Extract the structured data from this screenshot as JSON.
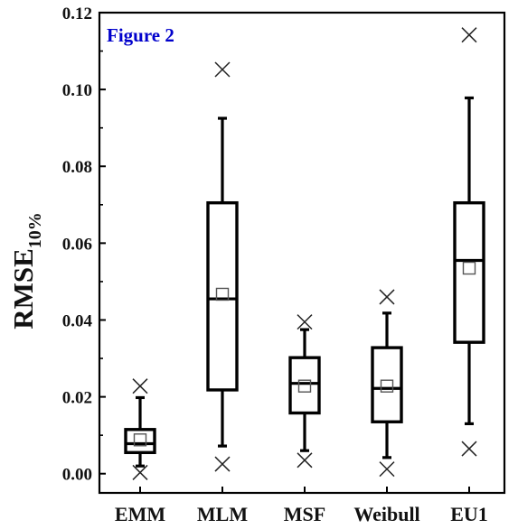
{
  "chart_data": {
    "type": "box",
    "annotation": "Figure 2",
    "annotation_color": "#0000cc",
    "ylabel": "RMSE",
    "ylabel_subscript": "10%",
    "xlabel": "",
    "ylim": [
      -0.005,
      0.12
    ],
    "yticks": [
      0.0,
      0.02,
      0.04,
      0.06,
      0.08,
      0.1,
      0.12
    ],
    "ytick_labels": [
      "0.00",
      "0.02",
      "0.04",
      "0.06",
      "0.08",
      "0.10",
      "0.12"
    ],
    "categories": [
      "EMM",
      "MLM",
      "MSF",
      "Weibull",
      "EU1"
    ],
    "boxes": [
      {
        "category": "EMM",
        "whisker_low": 0.002,
        "q1": 0.0055,
        "median": 0.0078,
        "q3": 0.0115,
        "whisker_high": 0.0198,
        "mean": 0.0088,
        "outliers": [
          0.0003,
          0.0228
        ]
      },
      {
        "category": "MLM",
        "whisker_low": 0.0072,
        "q1": 0.0218,
        "median": 0.0455,
        "q3": 0.0705,
        "whisker_high": 0.0925,
        "mean": 0.0467,
        "outliers": [
          0.0025,
          0.1052
        ]
      },
      {
        "category": "MSF",
        "whisker_low": 0.006,
        "q1": 0.0158,
        "median": 0.0235,
        "q3": 0.0302,
        "whisker_high": 0.0375,
        "mean": 0.0228,
        "outliers": [
          0.0035,
          0.0395
        ]
      },
      {
        "category": "Weibull",
        "whisker_low": 0.0042,
        "q1": 0.0135,
        "median": 0.0222,
        "q3": 0.0328,
        "whisker_high": 0.0418,
        "mean": 0.0228,
        "outliers": [
          0.0012,
          0.046
        ]
      },
      {
        "category": "EU1",
        "whisker_low": 0.013,
        "q1": 0.0342,
        "median": 0.0555,
        "q3": 0.0705,
        "whisker_high": 0.0978,
        "mean": 0.0535,
        "outliers": [
          0.0065,
          0.1142
        ]
      }
    ],
    "grid": false,
    "legend": "none",
    "colors": {
      "box": "#000000",
      "mean_marker": "#555555",
      "outlier_marker": "#222222"
    }
  }
}
